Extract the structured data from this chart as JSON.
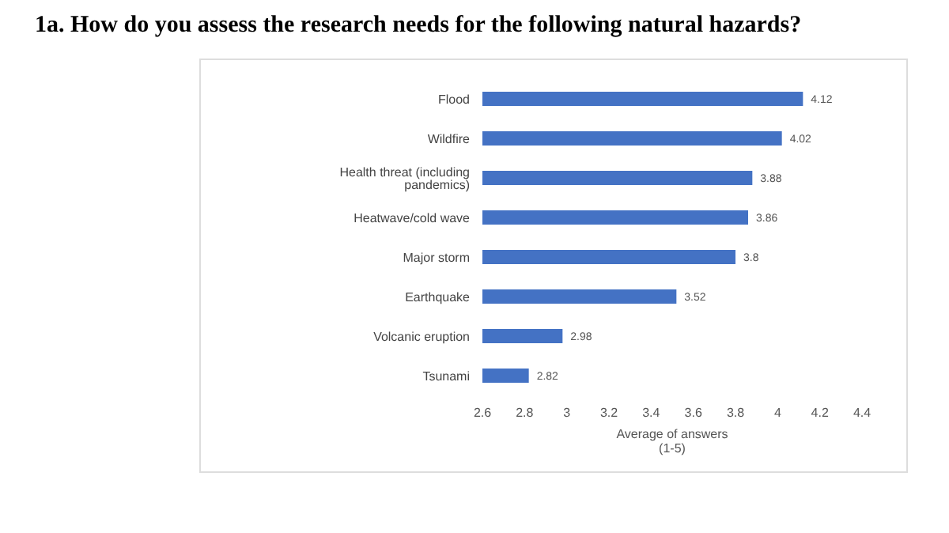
{
  "chart_data": {
    "type": "bar",
    "orientation": "horizontal",
    "title": "1a. How do you assess the research needs for the following natural hazards?",
    "categories": [
      "Flood",
      "Wildfire",
      "Health threat (including pandemics)",
      "Heatwave/cold wave",
      "Major storm",
      "Earthquake",
      "Volcanic eruption",
      "Tsunami"
    ],
    "values": [
      4.12,
      4.02,
      3.88,
      3.86,
      3.8,
      3.52,
      2.98,
      2.82
    ],
    "color": "#4472c4",
    "xlabel": "Average of answers\n(1-5)",
    "xlim": [
      2.6,
      4.4
    ],
    "xticks": [
      2.6,
      2.8,
      3,
      3.2,
      3.4,
      3.6,
      3.8,
      4,
      4.2,
      4.4
    ],
    "data_labels": true,
    "grid": false,
    "legend": false
  }
}
